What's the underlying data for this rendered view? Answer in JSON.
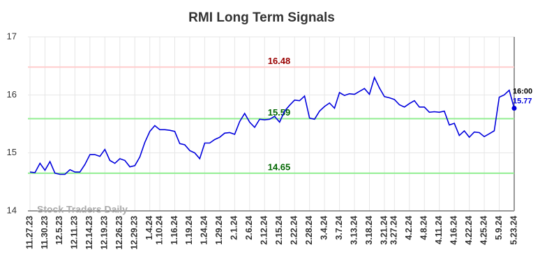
{
  "chart_data": {
    "type": "line",
    "title": "RMI Long Term Signals",
    "watermark": "Stock Traders Daily",
    "categories": [
      "11.27.23",
      null,
      null,
      "11.30.23",
      null,
      null,
      "12.5.23",
      null,
      null,
      "12.11.23",
      null,
      null,
      "12.14.23",
      null,
      null,
      "12.19.23",
      null,
      null,
      "12.26.23",
      null,
      null,
      "12.29.23",
      null,
      null,
      "1.4.24",
      null,
      "1.10.24",
      null,
      null,
      "1.16.24",
      null,
      null,
      "1.19.24",
      null,
      null,
      "1.24.24",
      null,
      null,
      "1.29.24",
      null,
      null,
      "2.1.24",
      null,
      null,
      "2.6.24",
      null,
      null,
      "2.12.24",
      null,
      null,
      "2.15.24",
      null,
      null,
      "2.22.24",
      null,
      null,
      "2.28.24",
      null,
      null,
      "3.4.24",
      null,
      null,
      "3.7.24",
      null,
      null,
      "3.13.24",
      null,
      null,
      "3.18.24",
      null,
      null,
      "3.21.24",
      null,
      "3.27.24",
      null,
      null,
      "4.2.24",
      null,
      null,
      "4.8.24",
      null,
      null,
      "4.11.24",
      null,
      null,
      "4.16.24",
      null,
      null,
      "4.22.24",
      null,
      null,
      "4.25.24",
      null,
      null,
      "5.9.24",
      null,
      null,
      "5.23.24"
    ],
    "series": [
      {
        "color": "#0000dd",
        "values": [
          14.67,
          14.66,
          14.82,
          14.7,
          14.85,
          14.65,
          14.63,
          14.63,
          14.71,
          14.67,
          14.67,
          14.8,
          14.97,
          14.97,
          14.94,
          15.06,
          14.87,
          14.82,
          14.9,
          14.87,
          14.76,
          14.78,
          14.93,
          15.18,
          15.37,
          15.47,
          15.4,
          15.4,
          15.39,
          15.37,
          15.16,
          15.14,
          15.04,
          15.0,
          14.9,
          15.17,
          15.17,
          15.23,
          15.27,
          15.34,
          15.35,
          15.32,
          15.54,
          15.68,
          15.53,
          15.44,
          15.58,
          15.57,
          15.58,
          15.63,
          15.53,
          15.72,
          15.82,
          15.91,
          15.9,
          15.98,
          15.6,
          15.58,
          15.72,
          15.8,
          15.86,
          15.77,
          16.04,
          15.99,
          16.02,
          16.01,
          16.06,
          16.11,
          16.01,
          16.3,
          16.12,
          15.97,
          15.95,
          15.92,
          15.83,
          15.79,
          15.85,
          15.9,
          15.79,
          15.79,
          15.7,
          15.71,
          15.7,
          15.72,
          15.48,
          15.51,
          15.3,
          15.38,
          15.27,
          15.36,
          15.35,
          15.28,
          15.33,
          15.38,
          15.96,
          16.0,
          16.08,
          15.77
        ]
      }
    ],
    "last_time": "16:00",
    "hlines": [
      {
        "value": 16.48,
        "color": "#ffcccc",
        "label_color": "#990000"
      },
      {
        "value": 15.59,
        "color": "#90ee90",
        "label_color": "#006600"
      },
      {
        "value": 14.65,
        "color": "#90ee90",
        "label_color": "#006600"
      }
    ],
    "ylim": [
      14,
      17
    ],
    "yticks": [
      14,
      15,
      16,
      17
    ],
    "grid": true
  }
}
